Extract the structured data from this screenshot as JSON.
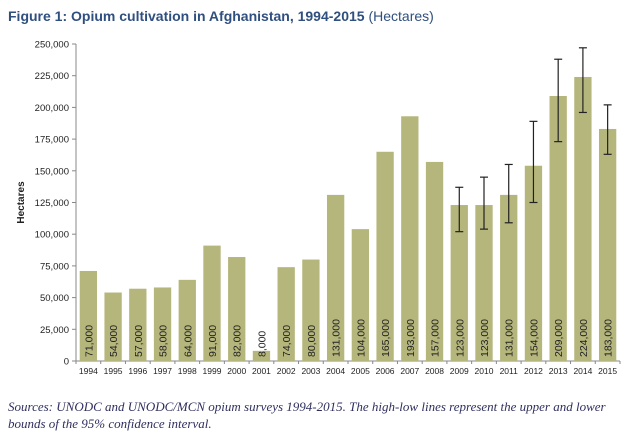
{
  "figure": {
    "title_prefix": "Figure 1: Opium cultivation in Afghanistan, 1994-2015",
    "title_suffix": "(Hectares)"
  },
  "source_note": "Sources: UNODC and UNODC/MCN opium surveys 1994-2015. The high-low lines represent the upper and lower bounds of the 95% confidence interval.",
  "colors": {
    "bar": "#b5b67c",
    "error_bar": "#222222",
    "axis": "#888888",
    "text": "#222222"
  },
  "chart_data": {
    "type": "bar",
    "title": "Opium cultivation in Afghanistan, 1994-2015",
    "ylabel": "Hectares",
    "xlabel": "",
    "ylim": [
      0,
      250000
    ],
    "yticks": [
      0,
      25000,
      50000,
      75000,
      100000,
      125000,
      150000,
      175000,
      200000,
      225000,
      250000
    ],
    "ytick_labels": [
      "0",
      "25,000",
      "50,000",
      "75,000",
      "100,000",
      "125,000",
      "150,000",
      "175,000",
      "200,000",
      "225,000",
      "250,000"
    ],
    "grid": false,
    "categories": [
      "1994",
      "1995",
      "1996",
      "1997",
      "1998",
      "1999",
      "2000",
      "2001",
      "2002",
      "2003",
      "2004",
      "2005",
      "2006",
      "2007",
      "2008",
      "2009",
      "2010",
      "2011",
      "2012",
      "2013",
      "2014",
      "2015"
    ],
    "values": [
      71000,
      54000,
      57000,
      58000,
      64000,
      91000,
      82000,
      8000,
      74000,
      80000,
      131000,
      104000,
      165000,
      193000,
      157000,
      123000,
      123000,
      131000,
      154000,
      209000,
      224000,
      183000
    ],
    "value_labels": [
      "71,000",
      "54,000",
      "57,000",
      "58,000",
      "64,000",
      "91,000",
      "82,000",
      "8,000",
      "74,000",
      "80,000",
      "131,000",
      "104,000",
      "165,000",
      "193,000",
      "157,000",
      "123,000",
      "123,000",
      "131,000",
      "154,000",
      "209,000",
      "224,000",
      "183,000"
    ],
    "confidence_interval": [
      null,
      null,
      null,
      null,
      null,
      null,
      null,
      null,
      null,
      null,
      null,
      null,
      null,
      null,
      null,
      [
        102000,
        137000
      ],
      [
        104000,
        145000
      ],
      [
        109000,
        155000
      ],
      [
        125000,
        189000
      ],
      [
        173000,
        238000
      ],
      [
        196000,
        247000
      ],
      [
        163000,
        202000
      ]
    ]
  }
}
